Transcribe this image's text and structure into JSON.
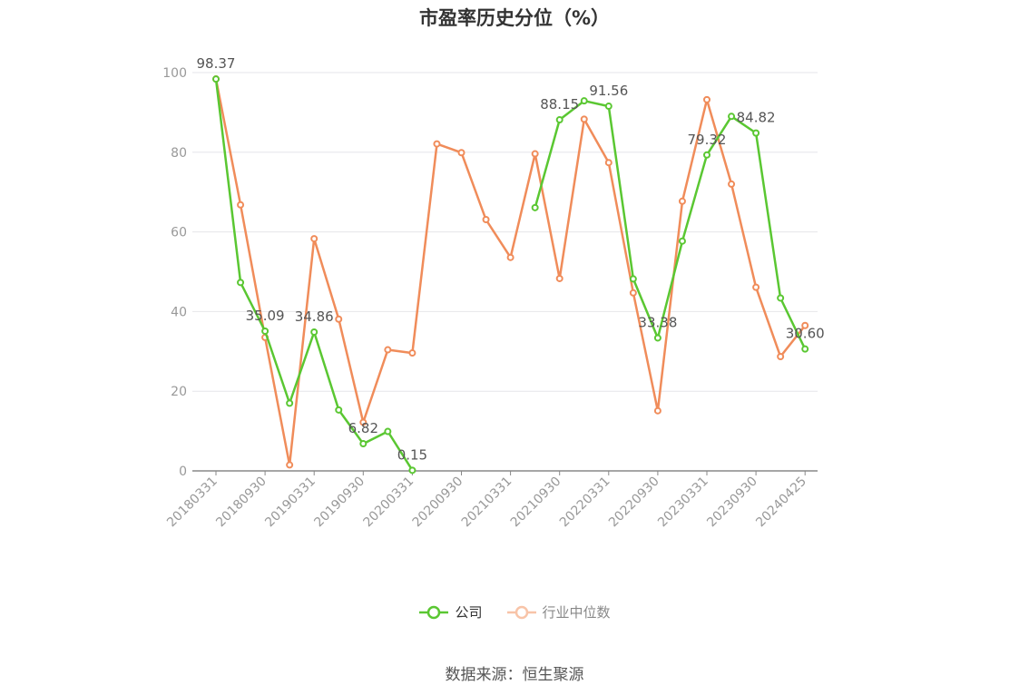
{
  "chart_data": {
    "type": "line",
    "title": "市盈率历史分位（%）",
    "x": [
      "20180331",
      "20180630",
      "20180930",
      "20181231",
      "20190331",
      "20190630",
      "20190930",
      "20191231",
      "20200331",
      "20200630",
      "20200930",
      "20201231",
      "20210331",
      "20210630",
      "20210930",
      "20211231",
      "20220331",
      "20220630",
      "20220930",
      "20221231",
      "20230331",
      "20230630",
      "20230930",
      "20231231",
      "20240425"
    ],
    "x_tick_labels": [
      "20180331",
      "20180930",
      "20190331",
      "20190930",
      "20200331",
      "20200930",
      "20210331",
      "20210930",
      "20220331",
      "20220930",
      "20230331",
      "20230930",
      "20240425"
    ],
    "ylim": [
      0,
      100
    ],
    "y_ticks": [
      0,
      20,
      40,
      60,
      80,
      100
    ],
    "grid": true,
    "legend_position": "bottom",
    "series": [
      {
        "name": "公司",
        "color": "#5ac732",
        "values": [
          98.37,
          47.3,
          35.09,
          17.0,
          34.86,
          15.3,
          6.82,
          9.9,
          0.15,
          null,
          null,
          null,
          null,
          66.1,
          88.15,
          92.9,
          91.56,
          48.2,
          33.38,
          57.7,
          79.32,
          89.0,
          84.82,
          43.4,
          30.6
        ],
        "labels": [
          {
            "index": 0,
            "text": "98.37"
          },
          {
            "index": 2,
            "text": "35.09"
          },
          {
            "index": 4,
            "text": "34.86"
          },
          {
            "index": 6,
            "text": "6.82"
          },
          {
            "index": 8,
            "text": "0.15"
          },
          {
            "index": 14,
            "text": "88.15"
          },
          {
            "index": 16,
            "text": "91.56"
          },
          {
            "index": 18,
            "text": "33.38"
          },
          {
            "index": 20,
            "text": "79.32"
          },
          {
            "index": 22,
            "text": "84.82"
          },
          {
            "index": 24,
            "text": "30.60"
          }
        ]
      },
      {
        "name": "行业中位数",
        "color": "#f08c5a",
        "values": [
          98.4,
          66.8,
          33.5,
          1.5,
          58.3,
          38.1,
          12.2,
          30.4,
          29.6,
          82.1,
          79.9,
          63.1,
          53.6,
          79.6,
          48.3,
          88.3,
          77.4,
          44.7,
          15.1,
          67.7,
          93.2,
          72.0,
          46.1,
          28.7,
          36.5
        ]
      }
    ]
  },
  "legend": {
    "items": [
      {
        "label": "公司"
      },
      {
        "label": "行业中位数"
      }
    ]
  },
  "source": "数据来源：恒生聚源"
}
